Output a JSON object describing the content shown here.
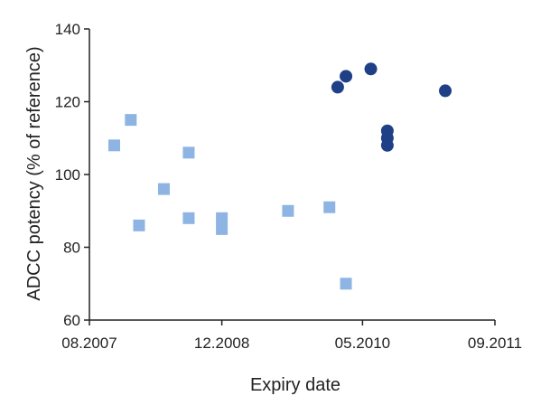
{
  "colors": {
    "series_square": "#8eb4e3",
    "series_circle": "#1f3f86",
    "axis": "#222222"
  },
  "chart_data": {
    "type": "scatter",
    "title": "",
    "xlabel": "Expiry date",
    "ylabel": "ADCC potency (% of reference)",
    "xlim": [
      "2007-08",
      "2011-09"
    ],
    "ylim": [
      60,
      140
    ],
    "x_ticks": [
      "08.2007",
      "12.2008",
      "05.2010",
      "09.2011"
    ],
    "y_ticks": [
      60,
      80,
      100,
      120,
      140
    ],
    "grid": false,
    "legend": "none",
    "series": [
      {
        "marker": "square",
        "points": [
          {
            "x": "2007-11",
            "y": 108
          },
          {
            "x": "2008-01",
            "y": 115
          },
          {
            "x": "2008-02",
            "y": 86
          },
          {
            "x": "2008-05",
            "y": 96
          },
          {
            "x": "2008-08",
            "y": 106
          },
          {
            "x": "2008-08",
            "y": 88
          },
          {
            "x": "2008-12",
            "y": 88
          },
          {
            "x": "2008-12",
            "y": 85
          },
          {
            "x": "2009-08",
            "y": 90
          },
          {
            "x": "2010-01",
            "y": 91
          },
          {
            "x": "2010-03",
            "y": 70
          }
        ]
      },
      {
        "marker": "circle",
        "points": [
          {
            "x": "2010-02",
            "y": 124
          },
          {
            "x": "2010-03",
            "y": 127
          },
          {
            "x": "2010-06",
            "y": 129
          },
          {
            "x": "2010-08",
            "y": 112
          },
          {
            "x": "2010-08",
            "y": 110
          },
          {
            "x": "2010-08",
            "y": 108
          },
          {
            "x": "2011-03",
            "y": 123
          }
        ]
      }
    ]
  }
}
